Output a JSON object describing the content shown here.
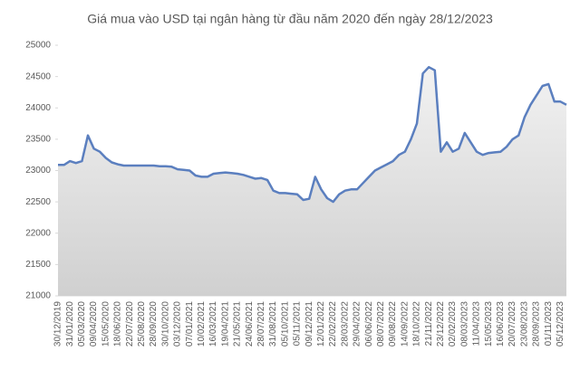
{
  "chart_data": {
    "type": "line",
    "title": "Giá mua vào USD tại ngân hàng từ đầu năm 2020 đến ngày 28/12/2023",
    "categories": [
      "30/12/2019",
      null,
      "31/01/2020",
      null,
      "05/03/2020",
      null,
      "09/04/2020",
      null,
      "15/05/2020",
      null,
      "18/06/2020",
      null,
      "22/07/2020",
      null,
      "25/08/2020",
      null,
      "28/09/2020",
      null,
      "30/10/2020",
      null,
      "03/12/2020",
      null,
      "07/01/2021",
      null,
      "10/02/2021",
      null,
      "16/03/2021",
      null,
      "19/04/2021",
      null,
      "21/05/2021",
      null,
      "24/06/2021",
      null,
      "28/07/2021",
      null,
      "31/08/2021",
      null,
      "05/10/2021",
      null,
      "05/11/2021",
      null,
      "09/12/2021",
      null,
      "12/01/2022",
      null,
      "22/02/2022",
      null,
      "28/03/2022",
      null,
      "29/04/2022",
      null,
      "06/06/2022",
      null,
      "08/07/2022",
      null,
      "09/08/2022",
      null,
      "14/09/2022",
      null,
      "18/10/2022",
      null,
      "21/11/2022",
      null,
      "23/12/2022",
      null,
      "02/02/2023",
      null,
      "08/03/2023",
      null,
      "11/04/2023",
      null,
      "15/05/2023",
      null,
      "16/06/2023",
      null,
      "20/07/2023",
      null,
      "23/08/2023",
      null,
      "28/09/2023",
      null,
      "01/11/2023",
      null,
      "05/12/2023",
      null
    ],
    "series": [
      {
        "name": "Giá mua vào USD",
        "color": "#5b7fbf",
        "values": [
          23090,
          23090,
          23150,
          23120,
          23150,
          23560,
          23350,
          23300,
          23200,
          23130,
          23100,
          23080,
          23080,
          23080,
          23080,
          23080,
          23080,
          23070,
          23070,
          23060,
          23020,
          23010,
          23000,
          22920,
          22900,
          22900,
          22950,
          22960,
          22970,
          22960,
          22950,
          22930,
          22900,
          22870,
          22880,
          22850,
          22680,
          22640,
          22640,
          22630,
          22620,
          22530,
          22550,
          22900,
          22700,
          22560,
          22500,
          22620,
          22680,
          22700,
          22700,
          22800,
          22900,
          23000,
          23050,
          23100,
          23150,
          23250,
          23300,
          23500,
          23750,
          24550,
          24650,
          24600,
          23300,
          23450,
          23300,
          23350,
          23600,
          23450,
          23300,
          23250,
          23280,
          23290,
          23300,
          23380,
          23500,
          23560,
          23850,
          24050,
          24200,
          24350,
          24380,
          24100,
          24100,
          24050
        ]
      }
    ],
    "ylim": [
      21000,
      25000
    ],
    "yticks": [
      21000,
      21500,
      22000,
      22500,
      23000,
      23500,
      24000,
      24500,
      25000
    ],
    "area_fill": true
  }
}
